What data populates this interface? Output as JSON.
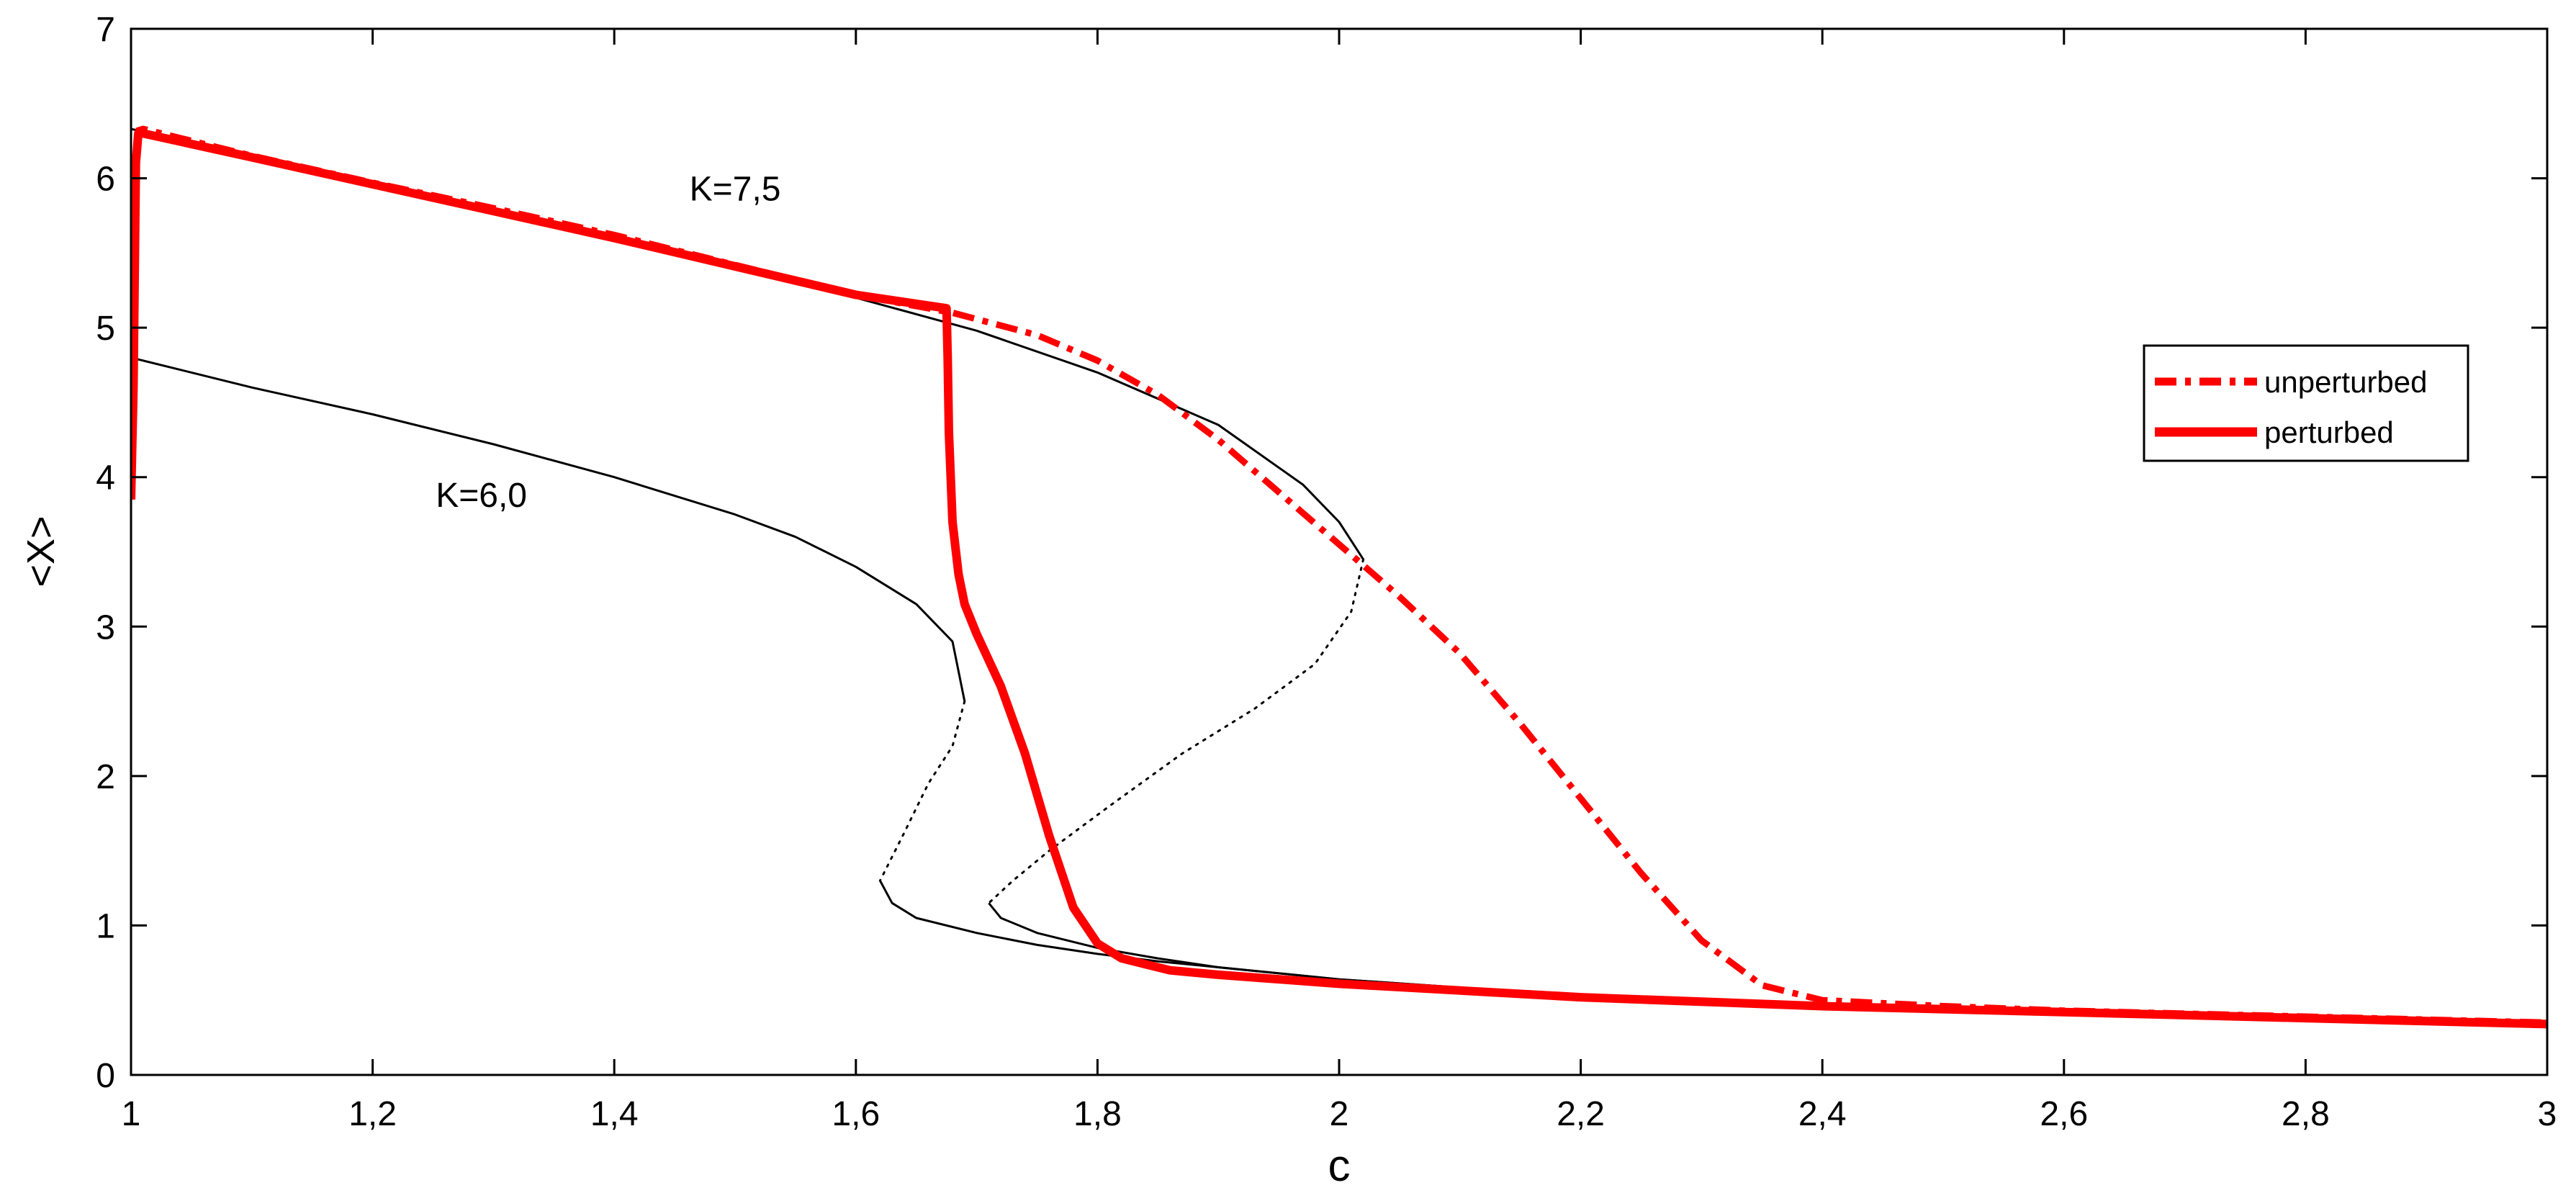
{
  "chart_data": {
    "type": "line",
    "title": "",
    "xlabel": "c",
    "ylabel": "<X>",
    "xlim": [
      1,
      3
    ],
    "ylim": [
      0,
      7
    ],
    "xticks": [
      1,
      1.2,
      1.4,
      1.6,
      1.8,
      2,
      2.2,
      2.4,
      2.6,
      2.8,
      3
    ],
    "xtick_labels": [
      "1",
      "1,2",
      "1,4",
      "1,6",
      "1,8",
      "2",
      "2,2",
      "2,4",
      "2,6",
      "2,8",
      "3"
    ],
    "yticks": [
      0,
      1,
      2,
      3,
      4,
      5,
      6,
      7
    ],
    "ytick_labels": [
      "0",
      "1",
      "2",
      "3",
      "4",
      "5",
      "6",
      "7"
    ],
    "grid": false,
    "legend_position": "right",
    "annotations": [
      {
        "text": "K=7,5",
        "x": 1.5,
        "y": 5.85
      },
      {
        "text": "K=6,0",
        "x": 1.29,
        "y": 3.8
      }
    ],
    "series": [
      {
        "name": "unperturbed",
        "color": "#ff0000",
        "style": "dashdot",
        "legend": true,
        "x": [
          1.0,
          1.002,
          1.004,
          1.006,
          1.01,
          1.1,
          1.2,
          1.3,
          1.4,
          1.5,
          1.6,
          1.68,
          1.75,
          1.8,
          1.85,
          1.9,
          1.95,
          2.0,
          2.05,
          2.1,
          2.15,
          2.2,
          2.25,
          2.3,
          2.35,
          2.4,
          2.5,
          2.6,
          2.7,
          2.8,
          2.9,
          3.0
        ],
        "y": [
          3.85,
          4.6,
          6.2,
          6.32,
          6.33,
          6.15,
          5.97,
          5.8,
          5.62,
          5.42,
          5.22,
          5.1,
          4.95,
          4.78,
          4.55,
          4.25,
          3.9,
          3.55,
          3.2,
          2.82,
          2.35,
          1.85,
          1.35,
          0.9,
          0.6,
          0.5,
          0.46,
          0.43,
          0.41,
          0.39,
          0.37,
          0.35
        ]
      },
      {
        "name": "perturbed",
        "color": "#ff0000",
        "style": "solid",
        "legend": true,
        "x": [
          1.0,
          1.002,
          1.004,
          1.006,
          1.01,
          1.1,
          1.2,
          1.3,
          1.4,
          1.5,
          1.6,
          1.675,
          1.676,
          1.677,
          1.68,
          1.685,
          1.69,
          1.7,
          1.72,
          1.74,
          1.76,
          1.78,
          1.8,
          1.82,
          1.84,
          1.86,
          1.9,
          2.0,
          2.2,
          2.4,
          2.6,
          2.8,
          3.0
        ],
        "y": [
          3.85,
          4.6,
          6.1,
          6.3,
          6.3,
          6.14,
          5.96,
          5.78,
          5.6,
          5.41,
          5.22,
          5.13,
          4.8,
          4.3,
          3.7,
          3.35,
          3.15,
          2.95,
          2.6,
          2.15,
          1.6,
          1.12,
          0.88,
          0.78,
          0.74,
          0.7,
          0.67,
          0.61,
          0.52,
          0.46,
          0.42,
          0.38,
          0.34
        ]
      },
      {
        "name": "",
        "color": "#000000",
        "style": "solid",
        "legend": false,
        "x": [
          1.0,
          1.1,
          1.2,
          1.3,
          1.4,
          1.5,
          1.6,
          1.7,
          1.8,
          1.9,
          1.97,
          2.0,
          2.02
        ],
        "y": [
          6.33,
          6.15,
          5.97,
          5.79,
          5.6,
          5.41,
          5.2,
          4.98,
          4.7,
          4.35,
          3.95,
          3.7,
          3.45
        ]
      },
      {
        "name": "",
        "color": "#000000",
        "style": "dotted",
        "legend": false,
        "x": [
          2.02,
          2.01,
          1.98,
          1.93,
          1.87,
          1.81,
          1.76,
          1.73,
          1.71
        ],
        "y": [
          3.45,
          3.1,
          2.75,
          2.45,
          2.15,
          1.8,
          1.5,
          1.3,
          1.15
        ]
      },
      {
        "name": "",
        "color": "#000000",
        "style": "solid",
        "legend": false,
        "x": [
          1.71,
          1.72,
          1.75,
          1.8,
          1.85,
          1.9,
          2.0,
          2.2,
          2.4,
          2.6,
          2.8,
          3.0
        ],
        "y": [
          1.15,
          1.05,
          0.95,
          0.85,
          0.78,
          0.72,
          0.64,
          0.53,
          0.46,
          0.41,
          0.38,
          0.36
        ]
      },
      {
        "name": "",
        "color": "#000000",
        "style": "solid",
        "legend": false,
        "x": [
          1.0,
          1.1,
          1.2,
          1.3,
          1.4,
          1.5,
          1.55,
          1.6,
          1.65,
          1.68,
          1.69
        ],
        "y": [
          4.8,
          4.6,
          4.42,
          4.22,
          4.0,
          3.75,
          3.6,
          3.4,
          3.15,
          2.9,
          2.5
        ]
      },
      {
        "name": "",
        "color": "#000000",
        "style": "dotted",
        "legend": false,
        "x": [
          1.69,
          1.68,
          1.66,
          1.64,
          1.62
        ],
        "y": [
          2.5,
          2.2,
          1.95,
          1.62,
          1.3
        ]
      },
      {
        "name": "",
        "color": "#000000",
        "style": "solid",
        "legend": false,
        "x": [
          1.62,
          1.63,
          1.65,
          1.7,
          1.75,
          1.8,
          1.85,
          1.9,
          2.0,
          2.2,
          2.4,
          2.6,
          2.8,
          3.0
        ],
        "y": [
          1.3,
          1.15,
          1.05,
          0.95,
          0.87,
          0.81,
          0.76,
          0.72,
          0.64,
          0.53,
          0.46,
          0.41,
          0.38,
          0.36
        ]
      }
    ]
  }
}
